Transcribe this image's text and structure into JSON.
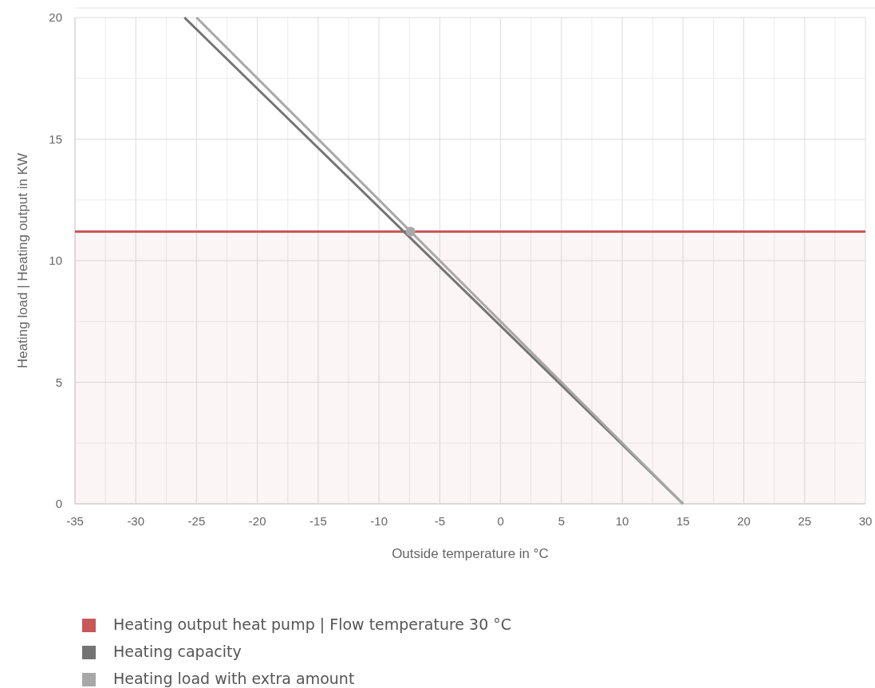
{
  "chart_data": {
    "type": "line",
    "xlabel": "Outside temperature in °C",
    "ylabel": "Heating load | Heating output in KW",
    "xlim": [
      -35,
      30
    ],
    "ylim": [
      0,
      20
    ],
    "xticks": [
      -35,
      {
        "value": -32.5,
        "label": null
      },
      -30,
      {
        "value": -27.5,
        "label": null
      },
      -25,
      {
        "value": -22.5,
        "label": null
      },
      -20,
      {
        "value": -17.5,
        "label": null
      },
      -15,
      {
        "value": -12.5,
        "label": null
      },
      -10,
      {
        "value": -7.5,
        "label": null
      },
      -5,
      {
        "value": -2.5,
        "label": null
      },
      0,
      {
        "value": 2.5,
        "label": null
      },
      5,
      {
        "value": 7.5,
        "label": null
      },
      10,
      {
        "value": 12.5,
        "label": null
      },
      15,
      {
        "value": 17.5,
        "label": null
      },
      20,
      {
        "value": 22.5,
        "label": null
      },
      25,
      {
        "value": 27.5,
        "label": null
      },
      30
    ],
    "yticks": [
      0,
      {
        "value": 2.5,
        "label": null
      },
      5,
      {
        "value": 7.5,
        "label": null
      },
      10,
      {
        "value": 12.5,
        "label": null
      },
      15,
      {
        "value": 17.5,
        "label": null
      },
      20
    ],
    "grid": true,
    "legend": "bottom",
    "series": [
      {
        "name": "Heating output heat pump | Flow temperature 30 °C",
        "type": "area",
        "color": "#c9575a",
        "x": [
          -35,
          30
        ],
        "values": [
          11.2,
          11.2
        ]
      },
      {
        "name": "Heating capacity",
        "color": "#747474",
        "x": [
          -26,
          15
        ],
        "values": [
          20,
          0
        ]
      },
      {
        "name": "Heating load with extra amount",
        "color": "#a8a8a8",
        "x": [
          -25,
          15
        ],
        "values": [
          20,
          0
        ]
      },
      {
        "type": "scatter",
        "marker": "circle",
        "color": "#a8a8a8",
        "x": [
          -7.4
        ],
        "values": [
          11.2
        ]
      }
    ]
  }
}
